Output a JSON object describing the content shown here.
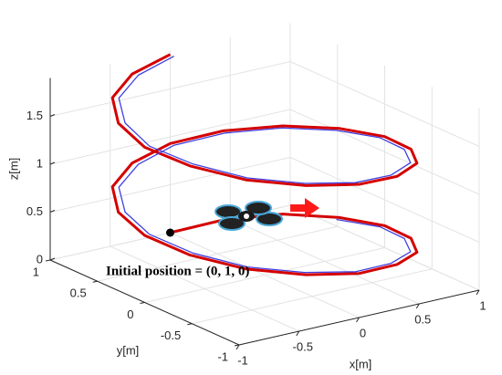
{
  "chart_data": {
    "type": "line3d",
    "xlabel": "x[m]",
    "ylabel": "y[m]",
    "zlabel": "z[m]",
    "xlim": [
      -1,
      1
    ],
    "ylim": [
      -1,
      1
    ],
    "zlim": [
      0,
      1.9
    ],
    "xticks": [
      -1,
      -0.5,
      0,
      0.5,
      1
    ],
    "yticks": [
      -1,
      -0.5,
      0,
      0.5,
      1
    ],
    "zticks": [
      0,
      0.5,
      1,
      1.5
    ],
    "grid": true,
    "series": [
      {
        "color": "#d40000",
        "x": [
          0,
          0.38,
          0.71,
          0.92,
          1,
          0.92,
          0.71,
          0.38,
          0,
          -0.38,
          -0.71,
          -0.92,
          -1,
          -0.92,
          -0.71,
          -0.38,
          0,
          0.38,
          0.71,
          0.92,
          1,
          0.92,
          0.71,
          0.38,
          0,
          -0.38,
          -0.71,
          -0.92,
          -1,
          -0.92,
          -0.71,
          -0.38,
          0
        ],
        "y": [
          1,
          0.92,
          0.71,
          0.38,
          0,
          -0.38,
          -0.71,
          -0.92,
          -1,
          -0.92,
          -0.71,
          -0.38,
          0,
          0.38,
          0.71,
          0.92,
          1,
          0.92,
          0.71,
          0.38,
          0,
          -0.38,
          -0.71,
          -0.92,
          -1,
          -0.92,
          -0.71,
          -0.38,
          0,
          0.38,
          0.71,
          0.92,
          1
        ],
        "z": [
          0,
          0.06,
          0.12,
          0.17,
          0.23,
          0.29,
          0.35,
          0.41,
          0.46,
          0.52,
          0.58,
          0.64,
          0.7,
          0.75,
          0.81,
          0.87,
          0.93,
          0.99,
          1.04,
          1.1,
          1.16,
          1.22,
          1.28,
          1.33,
          1.39,
          1.45,
          1.51,
          1.57,
          1.62,
          1.68,
          1.74,
          1.8,
          1.86
        ]
      },
      {
        "color": "#4040e0",
        "x": [
          0.88,
          0.96,
          0.88,
          0.68,
          0.36,
          0,
          -0.36,
          -0.68,
          -0.88,
          -0.96,
          -0.88,
          -0.68,
          -0.36,
          0,
          0.36,
          0.68,
          0.88,
          0.96,
          0.88,
          0.68,
          0.36,
          0,
          -0.36,
          -0.68,
          -0.88,
          -0.96,
          -0.88,
          -0.68,
          -0.36,
          0
        ],
        "y": [
          0.36,
          0,
          -0.36,
          -0.68,
          -0.88,
          -0.96,
          -0.88,
          -0.68,
          -0.36,
          0,
          0.36,
          0.68,
          0.88,
          0.96,
          0.88,
          0.68,
          0.36,
          0,
          -0.36,
          -0.68,
          -0.88,
          -0.96,
          -0.88,
          -0.68,
          -0.36,
          0,
          0.36,
          0.68,
          0.88,
          0.96
        ],
        "z": [
          0.17,
          0.23,
          0.29,
          0.35,
          0.41,
          0.46,
          0.52,
          0.58,
          0.64,
          0.7,
          0.75,
          0.81,
          0.87,
          0.93,
          0.99,
          1.04,
          1.1,
          1.16,
          1.22,
          1.28,
          1.33,
          1.39,
          1.45,
          1.51,
          1.57,
          1.62,
          1.68,
          1.74,
          1.8,
          1.86
        ]
      }
    ],
    "initial_point": {
      "x": 0,
      "y": 1,
      "z": 0
    },
    "annotation": "Initial position = (0, 1, 0)"
  }
}
